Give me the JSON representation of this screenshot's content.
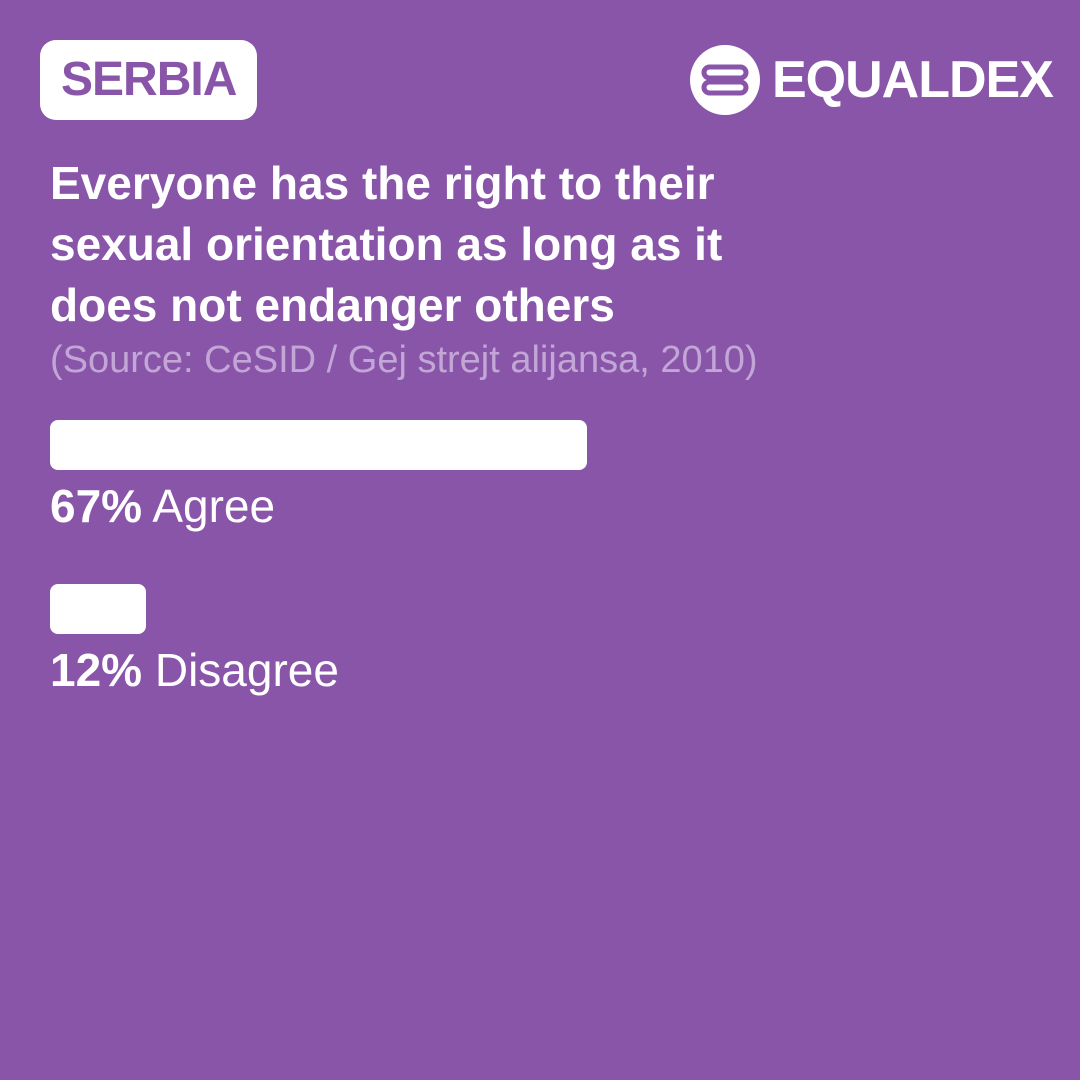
{
  "header": {
    "country": "SERBIA",
    "brand": "EQUALDEX"
  },
  "chart_data": {
    "type": "bar",
    "orientation": "horizontal",
    "title": "Everyone has the right to their sexual orientation as long as it does not endanger others",
    "subtitle": "(Source: CeSID / Gej strejt alijansa, 2010)",
    "categories": [
      "Agree",
      "Disagree"
    ],
    "values": [
      67,
      12
    ],
    "value_labels": [
      "67%",
      "12%"
    ],
    "color": "#ffffff"
  }
}
